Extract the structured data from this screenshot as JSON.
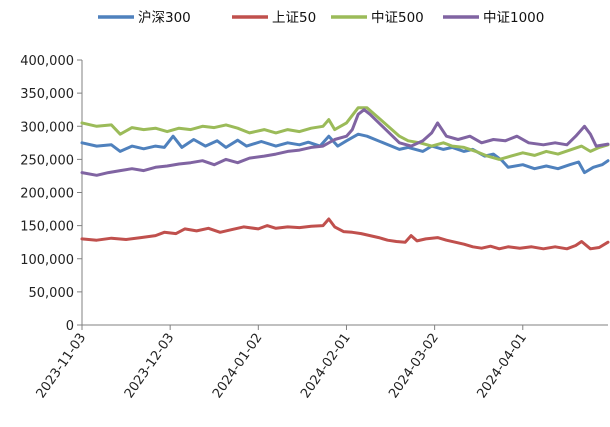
{
  "chart_data": {
    "type": "line",
    "title": "",
    "xlabel": "",
    "ylabel": "",
    "ylim": [
      0,
      400000
    ],
    "y_ticks": [
      "0",
      "50,000",
      "100,000",
      "150,000",
      "200,000",
      "250,000",
      "300,000",
      "350,000",
      "400,000"
    ],
    "x_tick_labels": [
      "2023-11-03",
      "2023-12-03",
      "2024-01-02",
      "2024-02-01",
      "2024-03-02",
      "2024-04-01"
    ],
    "x_range": [
      "2023-11-03",
      "2024-04-30"
    ],
    "grid": false,
    "legend_position": "top",
    "series": [
      {
        "name": "沪深300",
        "color": "#4f81bd",
        "points": [
          [
            "2023-11-03",
            275000
          ],
          [
            "2023-11-08",
            270000
          ],
          [
            "2023-11-13",
            272000
          ],
          [
            "2023-11-16",
            262000
          ],
          [
            "2023-11-20",
            270000
          ],
          [
            "2023-11-24",
            266000
          ],
          [
            "2023-11-28",
            270000
          ],
          [
            "2023-12-01",
            268000
          ],
          [
            "2023-12-04",
            285000
          ],
          [
            "2023-12-07",
            268000
          ],
          [
            "2023-12-11",
            280000
          ],
          [
            "2023-12-15",
            270000
          ],
          [
            "2023-12-19",
            278000
          ],
          [
            "2023-12-22",
            268000
          ],
          [
            "2023-12-26",
            279000
          ],
          [
            "2023-12-29",
            270000
          ],
          [
            "2024-01-03",
            277000
          ],
          [
            "2024-01-08",
            270000
          ],
          [
            "2024-01-12",
            275000
          ],
          [
            "2024-01-16",
            272000
          ],
          [
            "2024-01-19",
            276000
          ],
          [
            "2024-01-23",
            270000
          ],
          [
            "2024-01-26",
            285000
          ],
          [
            "2024-01-29",
            270000
          ],
          [
            "2024-02-01",
            278000
          ],
          [
            "2024-02-05",
            288000
          ],
          [
            "2024-02-08",
            285000
          ],
          [
            "2024-02-19",
            265000
          ],
          [
            "2024-02-22",
            268000
          ],
          [
            "2024-02-27",
            262000
          ],
          [
            "2024-03-01",
            270000
          ],
          [
            "2024-03-05",
            265000
          ],
          [
            "2024-03-08",
            268000
          ],
          [
            "2024-03-12",
            262000
          ],
          [
            "2024-03-15",
            265000
          ],
          [
            "2024-03-19",
            255000
          ],
          [
            "2024-03-22",
            258000
          ],
          [
            "2024-03-25",
            248000
          ],
          [
            "2024-03-27",
            238000
          ],
          [
            "2024-04-01",
            242000
          ],
          [
            "2024-04-05",
            236000
          ],
          [
            "2024-04-09",
            240000
          ],
          [
            "2024-04-13",
            236000
          ],
          [
            "2024-04-17",
            242000
          ],
          [
            "2024-04-20",
            246000
          ],
          [
            "2024-04-22",
            230000
          ],
          [
            "2024-04-25",
            238000
          ],
          [
            "2024-04-28",
            242000
          ],
          [
            "2024-04-30",
            248000
          ]
        ]
      },
      {
        "name": "上证50",
        "color": "#c0504d",
        "points": [
          [
            "2023-11-03",
            130000
          ],
          [
            "2023-11-08",
            128000
          ],
          [
            "2023-11-13",
            131000
          ],
          [
            "2023-11-18",
            129000
          ],
          [
            "2023-11-23",
            132000
          ],
          [
            "2023-11-28",
            135000
          ],
          [
            "2023-12-01",
            140000
          ],
          [
            "2023-12-05",
            138000
          ],
          [
            "2023-12-08",
            145000
          ],
          [
            "2023-12-12",
            142000
          ],
          [
            "2023-12-16",
            146000
          ],
          [
            "2023-12-20",
            140000
          ],
          [
            "2023-12-24",
            144000
          ],
          [
            "2023-12-28",
            148000
          ],
          [
            "2024-01-02",
            145000
          ],
          [
            "2024-01-05",
            150000
          ],
          [
            "2024-01-08",
            146000
          ],
          [
            "2024-01-12",
            148000
          ],
          [
            "2024-01-16",
            147000
          ],
          [
            "2024-01-20",
            149000
          ],
          [
            "2024-01-24",
            150000
          ],
          [
            "2024-01-26",
            160000
          ],
          [
            "2024-01-28",
            148000
          ],
          [
            "2024-01-31",
            141000
          ],
          [
            "2024-02-03",
            140000
          ],
          [
            "2024-02-06",
            138000
          ],
          [
            "2024-02-09",
            135000
          ],
          [
            "2024-02-12",
            132000
          ],
          [
            "2024-02-15",
            128000
          ],
          [
            "2024-02-18",
            126000
          ],
          [
            "2024-02-21",
            125000
          ],
          [
            "2024-02-23",
            135000
          ],
          [
            "2024-02-25",
            127000
          ],
          [
            "2024-02-28",
            130000
          ],
          [
            "2024-03-03",
            132000
          ],
          [
            "2024-03-06",
            128000
          ],
          [
            "2024-03-09",
            125000
          ],
          [
            "2024-03-12",
            122000
          ],
          [
            "2024-03-15",
            118000
          ],
          [
            "2024-03-18",
            116000
          ],
          [
            "2024-03-21",
            119000
          ],
          [
            "2024-03-24",
            115000
          ],
          [
            "2024-03-27",
            118000
          ],
          [
            "2024-03-31",
            116000
          ],
          [
            "2024-04-04",
            118000
          ],
          [
            "2024-04-08",
            115000
          ],
          [
            "2024-04-12",
            118000
          ],
          [
            "2024-04-16",
            115000
          ],
          [
            "2024-04-19",
            120000
          ],
          [
            "2024-04-21",
            126000
          ],
          [
            "2024-04-24",
            115000
          ],
          [
            "2024-04-27",
            117000
          ],
          [
            "2024-04-30",
            125000
          ]
        ]
      },
      {
        "name": "中证500",
        "color": "#9bbb59",
        "points": [
          [
            "2023-11-03",
            305000
          ],
          [
            "2023-11-08",
            300000
          ],
          [
            "2023-11-13",
            302000
          ],
          [
            "2023-11-16",
            288000
          ],
          [
            "2023-11-20",
            298000
          ],
          [
            "2023-11-24",
            295000
          ],
          [
            "2023-11-28",
            297000
          ],
          [
            "2023-12-02",
            292000
          ],
          [
            "2023-12-06",
            297000
          ],
          [
            "2023-12-10",
            295000
          ],
          [
            "2023-12-14",
            300000
          ],
          [
            "2023-12-18",
            298000
          ],
          [
            "2023-12-22",
            302000
          ],
          [
            "2023-12-26",
            297000
          ],
          [
            "2023-12-30",
            290000
          ],
          [
            "2024-01-04",
            295000
          ],
          [
            "2024-01-08",
            290000
          ],
          [
            "2024-01-12",
            295000
          ],
          [
            "2024-01-16",
            292000
          ],
          [
            "2024-01-20",
            297000
          ],
          [
            "2024-01-24",
            300000
          ],
          [
            "2024-01-26",
            310000
          ],
          [
            "2024-01-28",
            295000
          ],
          [
            "2024-02-01",
            305000
          ],
          [
            "2024-02-05",
            328000
          ],
          [
            "2024-02-08",
            328000
          ],
          [
            "2024-02-19",
            285000
          ],
          [
            "2024-02-22",
            278000
          ],
          [
            "2024-02-26",
            275000
          ],
          [
            "2024-03-01",
            270000
          ],
          [
            "2024-03-05",
            275000
          ],
          [
            "2024-03-08",
            270000
          ],
          [
            "2024-03-12",
            268000
          ],
          [
            "2024-03-16",
            262000
          ],
          [
            "2024-03-20",
            255000
          ],
          [
            "2024-03-24",
            250000
          ],
          [
            "2024-03-28",
            255000
          ],
          [
            "2024-04-01",
            260000
          ],
          [
            "2024-04-05",
            256000
          ],
          [
            "2024-04-09",
            262000
          ],
          [
            "2024-04-13",
            258000
          ],
          [
            "2024-04-17",
            264000
          ],
          [
            "2024-04-21",
            270000
          ],
          [
            "2024-04-24",
            262000
          ],
          [
            "2024-04-27",
            268000
          ],
          [
            "2024-04-30",
            272000
          ]
        ]
      },
      {
        "name": "中证1000",
        "color": "#8064a2",
        "points": [
          [
            "2023-11-03",
            230000
          ],
          [
            "2023-11-08",
            226000
          ],
          [
            "2023-11-12",
            230000
          ],
          [
            "2023-11-16",
            233000
          ],
          [
            "2023-11-20",
            236000
          ],
          [
            "2023-11-24",
            233000
          ],
          [
            "2023-11-28",
            238000
          ],
          [
            "2023-12-02",
            240000
          ],
          [
            "2023-12-06",
            243000
          ],
          [
            "2023-12-10",
            245000
          ],
          [
            "2023-12-14",
            248000
          ],
          [
            "2023-12-18",
            242000
          ],
          [
            "2023-12-22",
            250000
          ],
          [
            "2023-12-26",
            245000
          ],
          [
            "2023-12-30",
            252000
          ],
          [
            "2024-01-04",
            255000
          ],
          [
            "2024-01-08",
            258000
          ],
          [
            "2024-01-12",
            262000
          ],
          [
            "2024-01-16",
            264000
          ],
          [
            "2024-01-20",
            268000
          ],
          [
            "2024-01-24",
            270000
          ],
          [
            "2024-01-28",
            280000
          ],
          [
            "2024-02-01",
            285000
          ],
          [
            "2024-02-03",
            295000
          ],
          [
            "2024-02-05",
            318000
          ],
          [
            "2024-02-07",
            325000
          ],
          [
            "2024-02-09",
            318000
          ],
          [
            "2024-02-19",
            275000
          ],
          [
            "2024-02-23",
            270000
          ],
          [
            "2024-02-27",
            278000
          ],
          [
            "2024-03-01",
            290000
          ],
          [
            "2024-03-03",
            305000
          ],
          [
            "2024-03-06",
            285000
          ],
          [
            "2024-03-10",
            280000
          ],
          [
            "2024-03-14",
            285000
          ],
          [
            "2024-03-18",
            275000
          ],
          [
            "2024-03-22",
            280000
          ],
          [
            "2024-03-26",
            278000
          ],
          [
            "2024-03-30",
            285000
          ],
          [
            "2024-04-03",
            275000
          ],
          [
            "2024-04-08",
            272000
          ],
          [
            "2024-04-12",
            275000
          ],
          [
            "2024-04-16",
            272000
          ],
          [
            "2024-04-19",
            285000
          ],
          [
            "2024-04-22",
            300000
          ],
          [
            "2024-04-24",
            288000
          ],
          [
            "2024-04-26",
            270000
          ],
          [
            "2024-04-30",
            273000
          ]
        ]
      }
    ]
  }
}
